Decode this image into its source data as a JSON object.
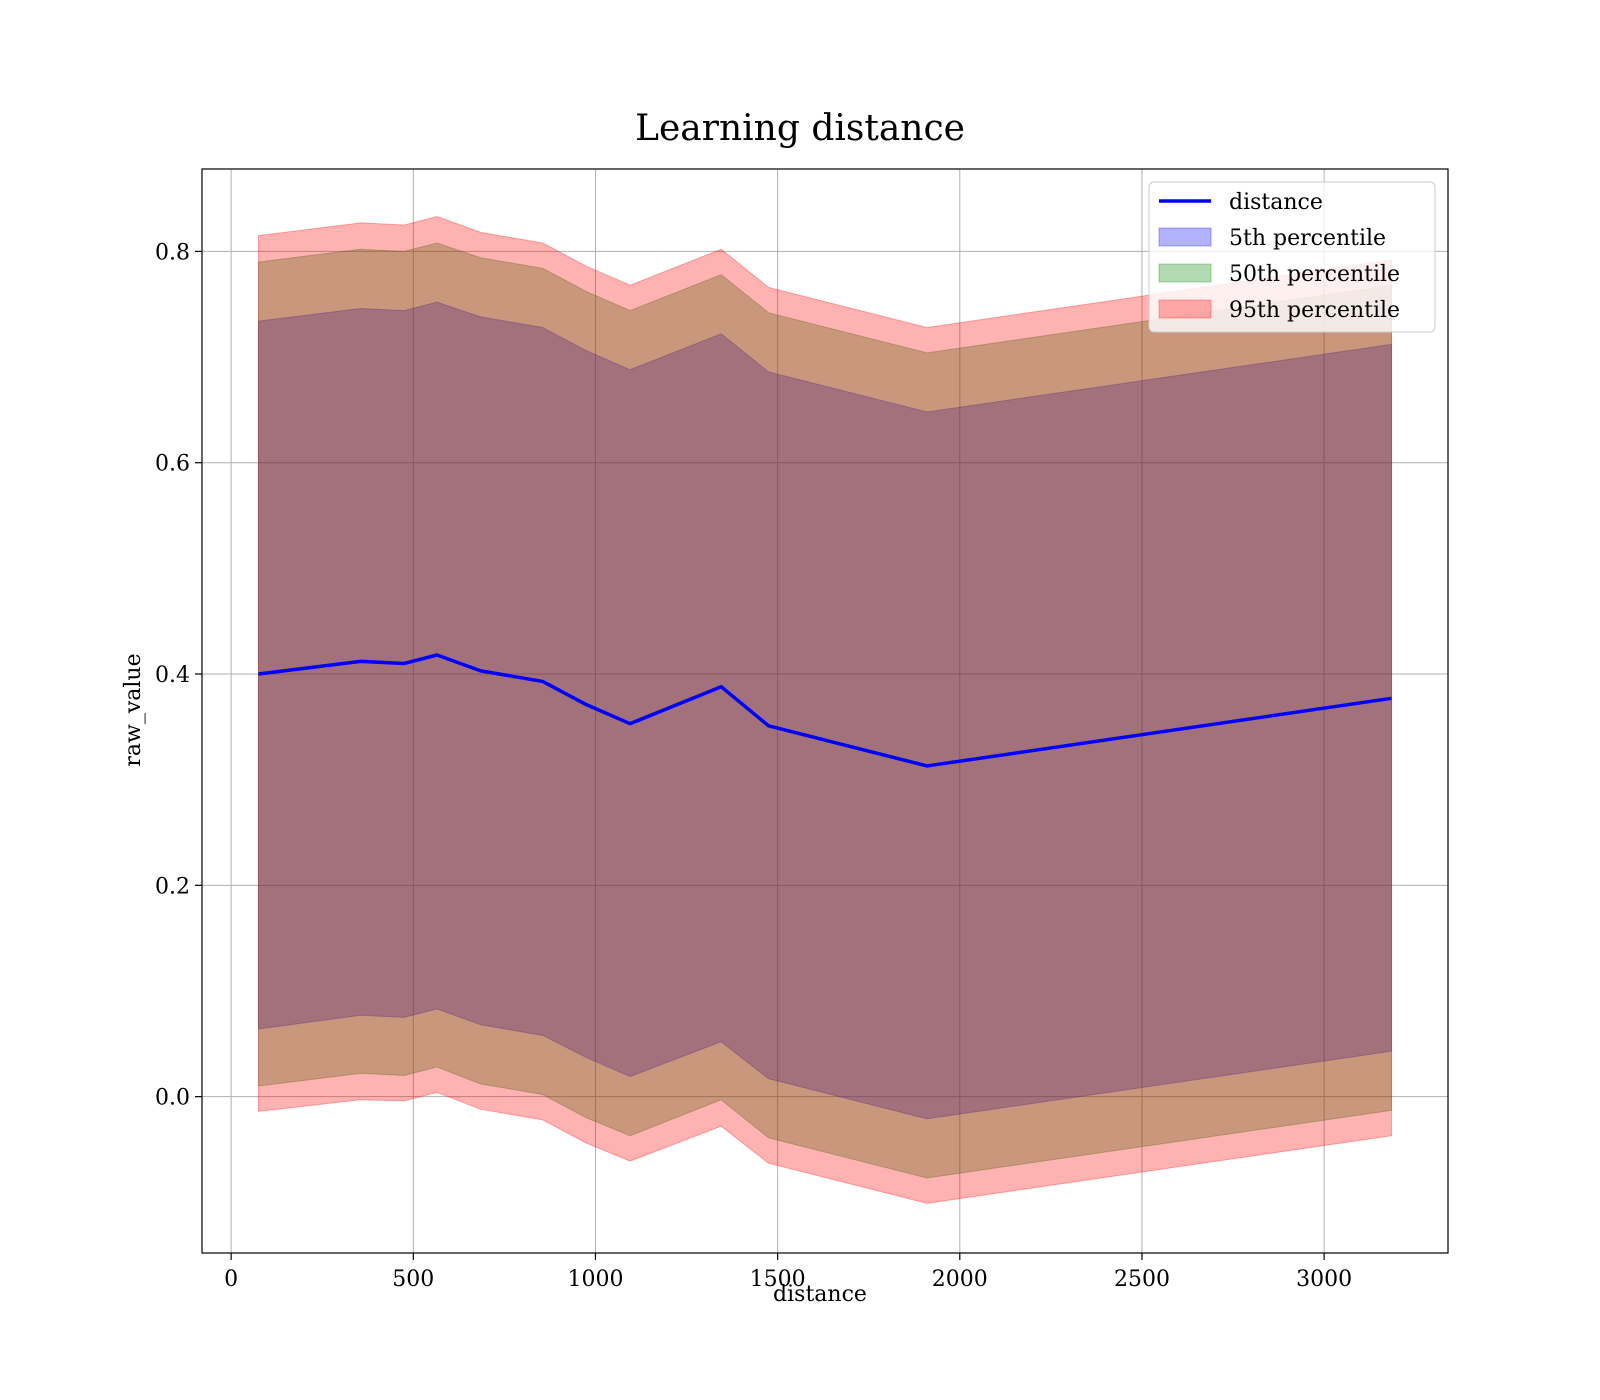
{
  "chart_data": {
    "type": "area",
    "title": "Learning distance",
    "xlabel": "distance",
    "ylabel": "raw_value",
    "xlim": [
      -80,
      3340
    ],
    "ylim": [
      -0.148,
      0.878
    ],
    "xticks": [
      0,
      500,
      1000,
      1500,
      2000,
      2500,
      3000
    ],
    "yticks": [
      0.0,
      0.2,
      0.4,
      0.6,
      0.8
    ],
    "xtick_labels": [
      "0",
      "500",
      "1000",
      "1500",
      "2000",
      "2500",
      "3000"
    ],
    "ytick_labels": [
      "0.0",
      "0.2",
      "0.4",
      "0.6",
      "0.8"
    ],
    "grid": true,
    "legend_position": "top-right",
    "x": [
      75,
      355,
      475,
      565,
      685,
      855,
      975,
      1095,
      1345,
      1475,
      1910,
      3185
    ],
    "line": {
      "name": "distance",
      "color": "#0000ff",
      "values": [
        0.4,
        0.412,
        0.41,
        0.418,
        0.403,
        0.393,
        0.371,
        0.353,
        0.388,
        0.351,
        0.313,
        0.377
      ]
    },
    "bands": [
      {
        "name": "5th percentile",
        "color": "#0000ff",
        "lower": [
          0.064,
          0.077,
          0.075,
          0.083,
          0.068,
          0.058,
          0.037,
          0.019,
          0.052,
          0.017,
          -0.021,
          0.043
        ],
        "upper": [
          0.734,
          0.746,
          0.744,
          0.752,
          0.738,
          0.728,
          0.706,
          0.688,
          0.722,
          0.686,
          0.648,
          0.712
        ]
      },
      {
        "name": "50th percentile",
        "color": "#008000",
        "lower": [
          0.01,
          0.022,
          0.02,
          0.028,
          0.012,
          0.002,
          -0.02,
          -0.037,
          -0.003,
          -0.039,
          -0.077,
          -0.013
        ],
        "upper": [
          0.79,
          0.802,
          0.8,
          0.808,
          0.794,
          0.784,
          0.762,
          0.744,
          0.778,
          0.742,
          0.704,
          0.768
        ]
      },
      {
        "name": "95th percentile",
        "color": "#ff0000",
        "lower": [
          -0.014,
          -0.003,
          -0.004,
          0.004,
          -0.012,
          -0.022,
          -0.044,
          -0.061,
          -0.028,
          -0.063,
          -0.101,
          -0.037
        ],
        "upper": [
          0.815,
          0.827,
          0.825,
          0.833,
          0.818,
          0.808,
          0.786,
          0.768,
          0.802,
          0.766,
          0.728,
          0.792
        ]
      }
    ]
  }
}
